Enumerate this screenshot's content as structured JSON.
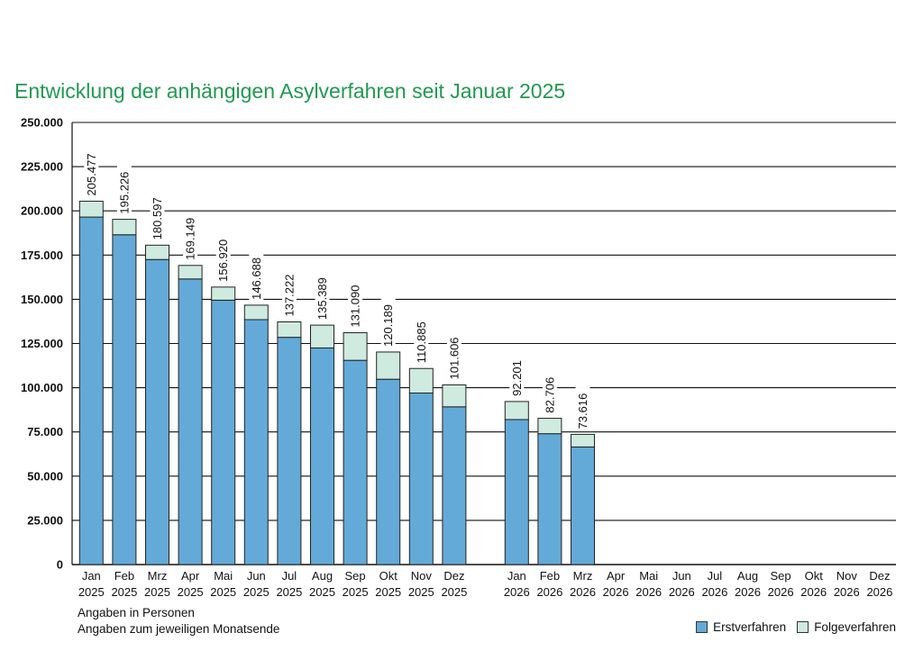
{
  "chart_data": {
    "type": "bar",
    "stacked": true,
    "title": "Entwicklung der anhängigen Asylverfahren seit Januar 2025",
    "ylim": [
      0,
      250000
    ],
    "yticks": [
      "0",
      "25.000",
      "50.000",
      "75.000",
      "100.000",
      "125.000",
      "150.000",
      "175.000",
      "200.000",
      "225.000",
      "250.000"
    ],
    "ytick_values": [
      0,
      25000,
      50000,
      75000,
      100000,
      125000,
      150000,
      175000,
      200000,
      225000,
      250000
    ],
    "groups": [
      {
        "year": "2025",
        "months": [
          "Jan",
          "Feb",
          "Mrz",
          "Apr",
          "Mai",
          "Jun",
          "Jul",
          "Aug",
          "Sep",
          "Okt",
          "Nov",
          "Dez"
        ],
        "erst": [
          196500,
          186500,
          172500,
          161500,
          149500,
          138500,
          128500,
          122500,
          115500,
          104800,
          97000,
          89200
        ],
        "totals": [
          205477,
          195226,
          180597,
          169149,
          156920,
          146688,
          137222,
          135389,
          131090,
          120189,
          110885,
          101606
        ],
        "total_labels": [
          "205.477",
          "195.226",
          "180.597",
          "169.149",
          "156.920",
          "146.688",
          "137.222",
          "135.389",
          "131.090",
          "120.189",
          "110.885",
          "101.606"
        ]
      },
      {
        "year": "2026",
        "months": [
          "Jan",
          "Feb",
          "Mrz",
          "Apr",
          "Mai",
          "Jun",
          "Jul",
          "Aug",
          "Sep",
          "Okt",
          "Nov",
          "Dez"
        ],
        "erst": [
          82000,
          74000,
          66500,
          null,
          null,
          null,
          null,
          null,
          null,
          null,
          null,
          null
        ],
        "totals": [
          92201,
          82706,
          73616,
          null,
          null,
          null,
          null,
          null,
          null,
          null,
          null,
          null
        ],
        "total_labels": [
          "92.201",
          "82.706",
          "73.616",
          "",
          "",
          "",
          "",
          "",
          "",
          "",
          "",
          ""
        ]
      }
    ],
    "series": [
      {
        "name": "Erstverfahren",
        "color": "#63aad8"
      },
      {
        "name": "Folgeverfahren",
        "color": "#cfeadf"
      }
    ],
    "notes": [
      "Angaben in Personen",
      "Angaben zum jeweiligen Monatsende"
    ],
    "legend": [
      "Erstverfahren",
      "Folgeverfahren"
    ]
  }
}
